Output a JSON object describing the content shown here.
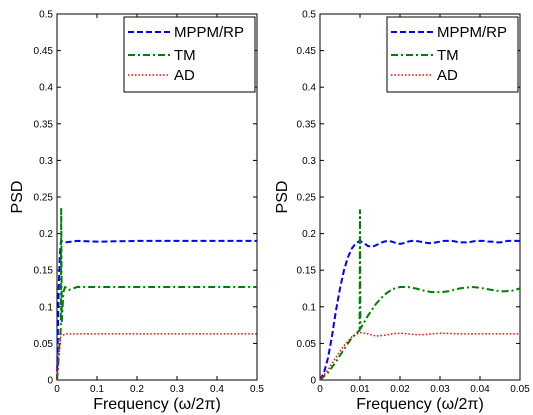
{
  "chart_data": [
    {
      "type": "line",
      "xlabel": "Frequency (ω/2π)",
      "ylabel": "PSD",
      "xlim": [
        0,
        0.5
      ],
      "ylim": [
        0,
        0.5
      ],
      "xticks": [
        "0",
        "0.1",
        "0.2",
        "0.3",
        "0.4",
        "0.5"
      ],
      "yticks": [
        "0",
        "0.05",
        "0.1",
        "0.15",
        "0.2",
        "0.25",
        "0.3",
        "0.35",
        "0.4",
        "0.45",
        "0.5"
      ],
      "legend": "top-right",
      "series": [
        {
          "name": "MPPM/RP",
          "color": "#0000ff",
          "dash": "6,3",
          "x": [
            0,
            0.004,
            0.007,
            0.01,
            0.02,
            0.05,
            0.1,
            0.2,
            0.3,
            0.4,
            0.5
          ],
          "y": [
            0,
            0.12,
            0.17,
            0.19,
            0.188,
            0.19,
            0.189,
            0.19,
            0.19,
            0.19,
            0.19
          ]
        },
        {
          "name": "TM",
          "color": "#008000",
          "dash": "7,3,2,3",
          "x": [
            0,
            0.003,
            0.006,
            0.0095,
            0.0105,
            0.012,
            0.016,
            0.02,
            0.03,
            0.05,
            0.1,
            0.2,
            0.3,
            0.4,
            0.5
          ],
          "y": [
            0,
            0.02,
            0.05,
            0.07,
            0.235,
            0.08,
            0.12,
            0.127,
            0.123,
            0.127,
            0.127,
            0.127,
            0.127,
            0.127,
            0.127
          ]
        },
        {
          "name": "AD",
          "color": "#ff0000",
          "dash": "1.5,2",
          "x": [
            0,
            0.005,
            0.01,
            0.015,
            0.02,
            0.05,
            0.1,
            0.2,
            0.3,
            0.4,
            0.5
          ],
          "y": [
            0,
            0.035,
            0.063,
            0.061,
            0.063,
            0.063,
            0.063,
            0.063,
            0.063,
            0.063,
            0.063
          ]
        }
      ]
    },
    {
      "type": "line",
      "xlabel": "Frequency (ω/2π)",
      "ylabel": "PSD",
      "xlim": [
        0,
        0.05
      ],
      "ylim": [
        0,
        0.5
      ],
      "xticks": [
        "0",
        "0.01",
        "0.02",
        "0.03",
        "0.04",
        "0.05"
      ],
      "yticks": [
        "0",
        "0.05",
        "0.1",
        "0.15",
        "0.2",
        "0.25",
        "0.3",
        "0.35",
        "0.4",
        "0.45",
        "0.5"
      ],
      "legend": "top-right",
      "series": [
        {
          "name": "MPPM/RP",
          "color": "#0000ff",
          "dash": "6,3",
          "x": [
            0,
            0.001,
            0.002,
            0.003,
            0.004,
            0.005,
            0.006,
            0.007,
            0.008,
            0.009,
            0.01,
            0.011,
            0.012,
            0.013,
            0.014,
            0.015,
            0.016,
            0.017,
            0.018,
            0.019,
            0.02,
            0.021,
            0.022,
            0.023,
            0.024,
            0.025,
            0.026,
            0.027,
            0.028,
            0.029,
            0.03,
            0.031,
            0.032,
            0.033,
            0.034,
            0.035,
            0.036,
            0.037,
            0.038,
            0.039,
            0.04,
            0.041,
            0.042,
            0.043,
            0.044,
            0.045,
            0.046,
            0.047,
            0.048,
            0.049,
            0.05
          ],
          "y": [
            0,
            0.01,
            0.03,
            0.06,
            0.095,
            0.125,
            0.15,
            0.168,
            0.18,
            0.187,
            0.19,
            0.187,
            0.183,
            0.182,
            0.184,
            0.187,
            0.189,
            0.19,
            0.189,
            0.187,
            0.186,
            0.187,
            0.189,
            0.19,
            0.19,
            0.189,
            0.188,
            0.187,
            0.187,
            0.188,
            0.189,
            0.19,
            0.19,
            0.19,
            0.189,
            0.188,
            0.188,
            0.188,
            0.189,
            0.19,
            0.19,
            0.19,
            0.189,
            0.189,
            0.188,
            0.188,
            0.189,
            0.19,
            0.19,
            0.19,
            0.19
          ]
        },
        {
          "name": "TM",
          "color": "#008000",
          "dash": "7,3,2,3",
          "x": [
            0,
            0.002,
            0.004,
            0.006,
            0.008,
            0.0099,
            0.01,
            0.0101,
            0.012,
            0.014,
            0.016,
            0.018,
            0.02,
            0.022,
            0.024,
            0.026,
            0.028,
            0.03,
            0.032,
            0.034,
            0.036,
            0.038,
            0.04,
            0.042,
            0.044,
            0.046,
            0.048,
            0.05
          ],
          "y": [
            0,
            0.01,
            0.025,
            0.042,
            0.058,
            0.068,
            0.232,
            0.07,
            0.088,
            0.104,
            0.116,
            0.124,
            0.127,
            0.127,
            0.125,
            0.122,
            0.12,
            0.12,
            0.121,
            0.124,
            0.126,
            0.127,
            0.126,
            0.124,
            0.122,
            0.121,
            0.122,
            0.125
          ]
        },
        {
          "name": "AD",
          "color": "#ff0000",
          "dash": "1.5,2",
          "x": [
            0,
            0.002,
            0.004,
            0.006,
            0.008,
            0.01,
            0.012,
            0.014,
            0.016,
            0.018,
            0.02,
            0.022,
            0.024,
            0.026,
            0.028,
            0.03,
            0.035,
            0.04,
            0.045,
            0.05
          ],
          "y": [
            0,
            0.014,
            0.031,
            0.047,
            0.059,
            0.065,
            0.063,
            0.06,
            0.061,
            0.063,
            0.064,
            0.063,
            0.062,
            0.062,
            0.063,
            0.064,
            0.063,
            0.063,
            0.063,
            0.063
          ]
        }
      ]
    }
  ]
}
